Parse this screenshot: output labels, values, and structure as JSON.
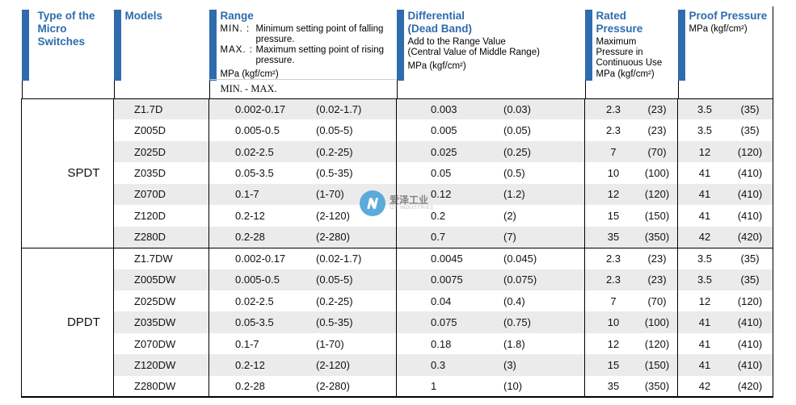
{
  "colors": {
    "accent_blue": "#2e6cae",
    "row_shade": "#ebebeb",
    "watermark_blue": "#4ba3d9"
  },
  "table": {
    "header": {
      "type": {
        "title": "Type of the Micro Switches"
      },
      "models": {
        "title": "Models"
      },
      "range": {
        "title": "Range",
        "defs": [
          {
            "label": "MIN. :",
            "text": "Minimum setting point of falling pressure."
          },
          {
            "label": "MAX. :",
            "text": "Maximum setting point of rising pressure."
          }
        ],
        "unit": "MPa (kgf/cm²)",
        "sub": "MIN. - MAX."
      },
      "differential": {
        "title": "Differential",
        "title2": "(Dead Band)",
        "desc1": "Add to the Range Value",
        "desc2": "(Central Value of Middle Range)",
        "unit": "MPa (kgf/cm²)"
      },
      "rated": {
        "title": "Rated Pressure",
        "desc": "Maximum Pressure in Continuous Use",
        "unit": "MPa (kgf/cm²)"
      },
      "proof": {
        "title": "Proof Pressure",
        "unit": "MPa (kgf/cm²)"
      }
    },
    "groups": [
      {
        "type": "SPDT",
        "rows": [
          {
            "model": "Z1.7D",
            "range": [
              "0.002-0.17",
              "(0.02-1.7)"
            ],
            "diff": [
              "0.003",
              "(0.03)"
            ],
            "rated": [
              "2.3",
              "(23)"
            ],
            "proof": [
              "3.5",
              "(35)"
            ]
          },
          {
            "model": "Z005D",
            "range": [
              "0.005-0.5",
              "(0.05-5)"
            ],
            "diff": [
              "0.005",
              "(0.05)"
            ],
            "rated": [
              "2.3",
              "(23)"
            ],
            "proof": [
              "3.5",
              "(35)"
            ]
          },
          {
            "model": "Z025D",
            "range": [
              "0.02-2.5",
              "(0.2-25)"
            ],
            "diff": [
              "0.025",
              "(0.25)"
            ],
            "rated": [
              "7",
              "(70)"
            ],
            "proof": [
              "12",
              "(120)"
            ]
          },
          {
            "model": "Z035D",
            "range": [
              "0.05-3.5",
              "(0.5-35)"
            ],
            "diff": [
              "0.05",
              "(0.5)"
            ],
            "rated": [
              "10",
              "(100)"
            ],
            "proof": [
              "41",
              "(410)"
            ]
          },
          {
            "model": "Z070D",
            "range": [
              "0.1-7",
              "(1-70)"
            ],
            "diff": [
              "0.12",
              "(1.2)"
            ],
            "rated": [
              "12",
              "(120)"
            ],
            "proof": [
              "41",
              "(410)"
            ]
          },
          {
            "model": "Z120D",
            "range": [
              "0.2-12",
              "(2-120)"
            ],
            "diff": [
              "0.2",
              "(2)"
            ],
            "rated": [
              "15",
              "(150)"
            ],
            "proof": [
              "41",
              "(410)"
            ]
          },
          {
            "model": "Z280D",
            "range": [
              "0.2-28",
              "(2-280)"
            ],
            "diff": [
              "0.7",
              "(7)"
            ],
            "rated": [
              "35",
              "(350)"
            ],
            "proof": [
              "42",
              "(420)"
            ]
          }
        ]
      },
      {
        "type": "DPDT",
        "rows": [
          {
            "model": "Z1.7DW",
            "range": [
              "0.002-0.17",
              "(0.02-1.7)"
            ],
            "diff": [
              "0.0045",
              "(0.045)"
            ],
            "rated": [
              "2.3",
              "(23)"
            ],
            "proof": [
              "3.5",
              "(35)"
            ]
          },
          {
            "model": "Z005DW",
            "range": [
              "0.005-0.5",
              "(0.05-5)"
            ],
            "diff": [
              "0.0075",
              "(0.075)"
            ],
            "rated": [
              "2.3",
              "(23)"
            ],
            "proof": [
              "3.5",
              "(35)"
            ]
          },
          {
            "model": "Z025DW",
            "range": [
              "0.02-2.5",
              "(0.2-25)"
            ],
            "diff": [
              "0.04",
              "(0.4)"
            ],
            "rated": [
              "7",
              "(70)"
            ],
            "proof": [
              "12",
              "(120)"
            ]
          },
          {
            "model": "Z035DW",
            "range": [
              "0.05-3.5",
              "(0.5-35)"
            ],
            "diff": [
              "0.075",
              "(0.75)"
            ],
            "rated": [
              "10",
              "(100)"
            ],
            "proof": [
              "41",
              "(410)"
            ]
          },
          {
            "model": "Z070DW",
            "range": [
              "0.1-7",
              "(1-70)"
            ],
            "diff": [
              "0.18",
              "(1.8)"
            ],
            "rated": [
              "12",
              "(120)"
            ],
            "proof": [
              "41",
              "(410)"
            ]
          },
          {
            "model": "Z120DW",
            "range": [
              "0.2-12",
              "(2-120)"
            ],
            "diff": [
              "0.3",
              "(3)"
            ],
            "rated": [
              "15",
              "(150)"
            ],
            "proof": [
              "41",
              "(410)"
            ]
          },
          {
            "model": "Z280DW",
            "range": [
              "0.2-28",
              "(2-280)"
            ],
            "diff": [
              "1",
              "(10)"
            ],
            "rated": [
              "35",
              "(350)"
            ],
            "proof": [
              "42",
              "(420)"
            ]
          }
        ]
      }
    ]
  },
  "watermark": {
    "cjk": "爱泽工业",
    "latin": "IZE INDUSTRIES"
  }
}
